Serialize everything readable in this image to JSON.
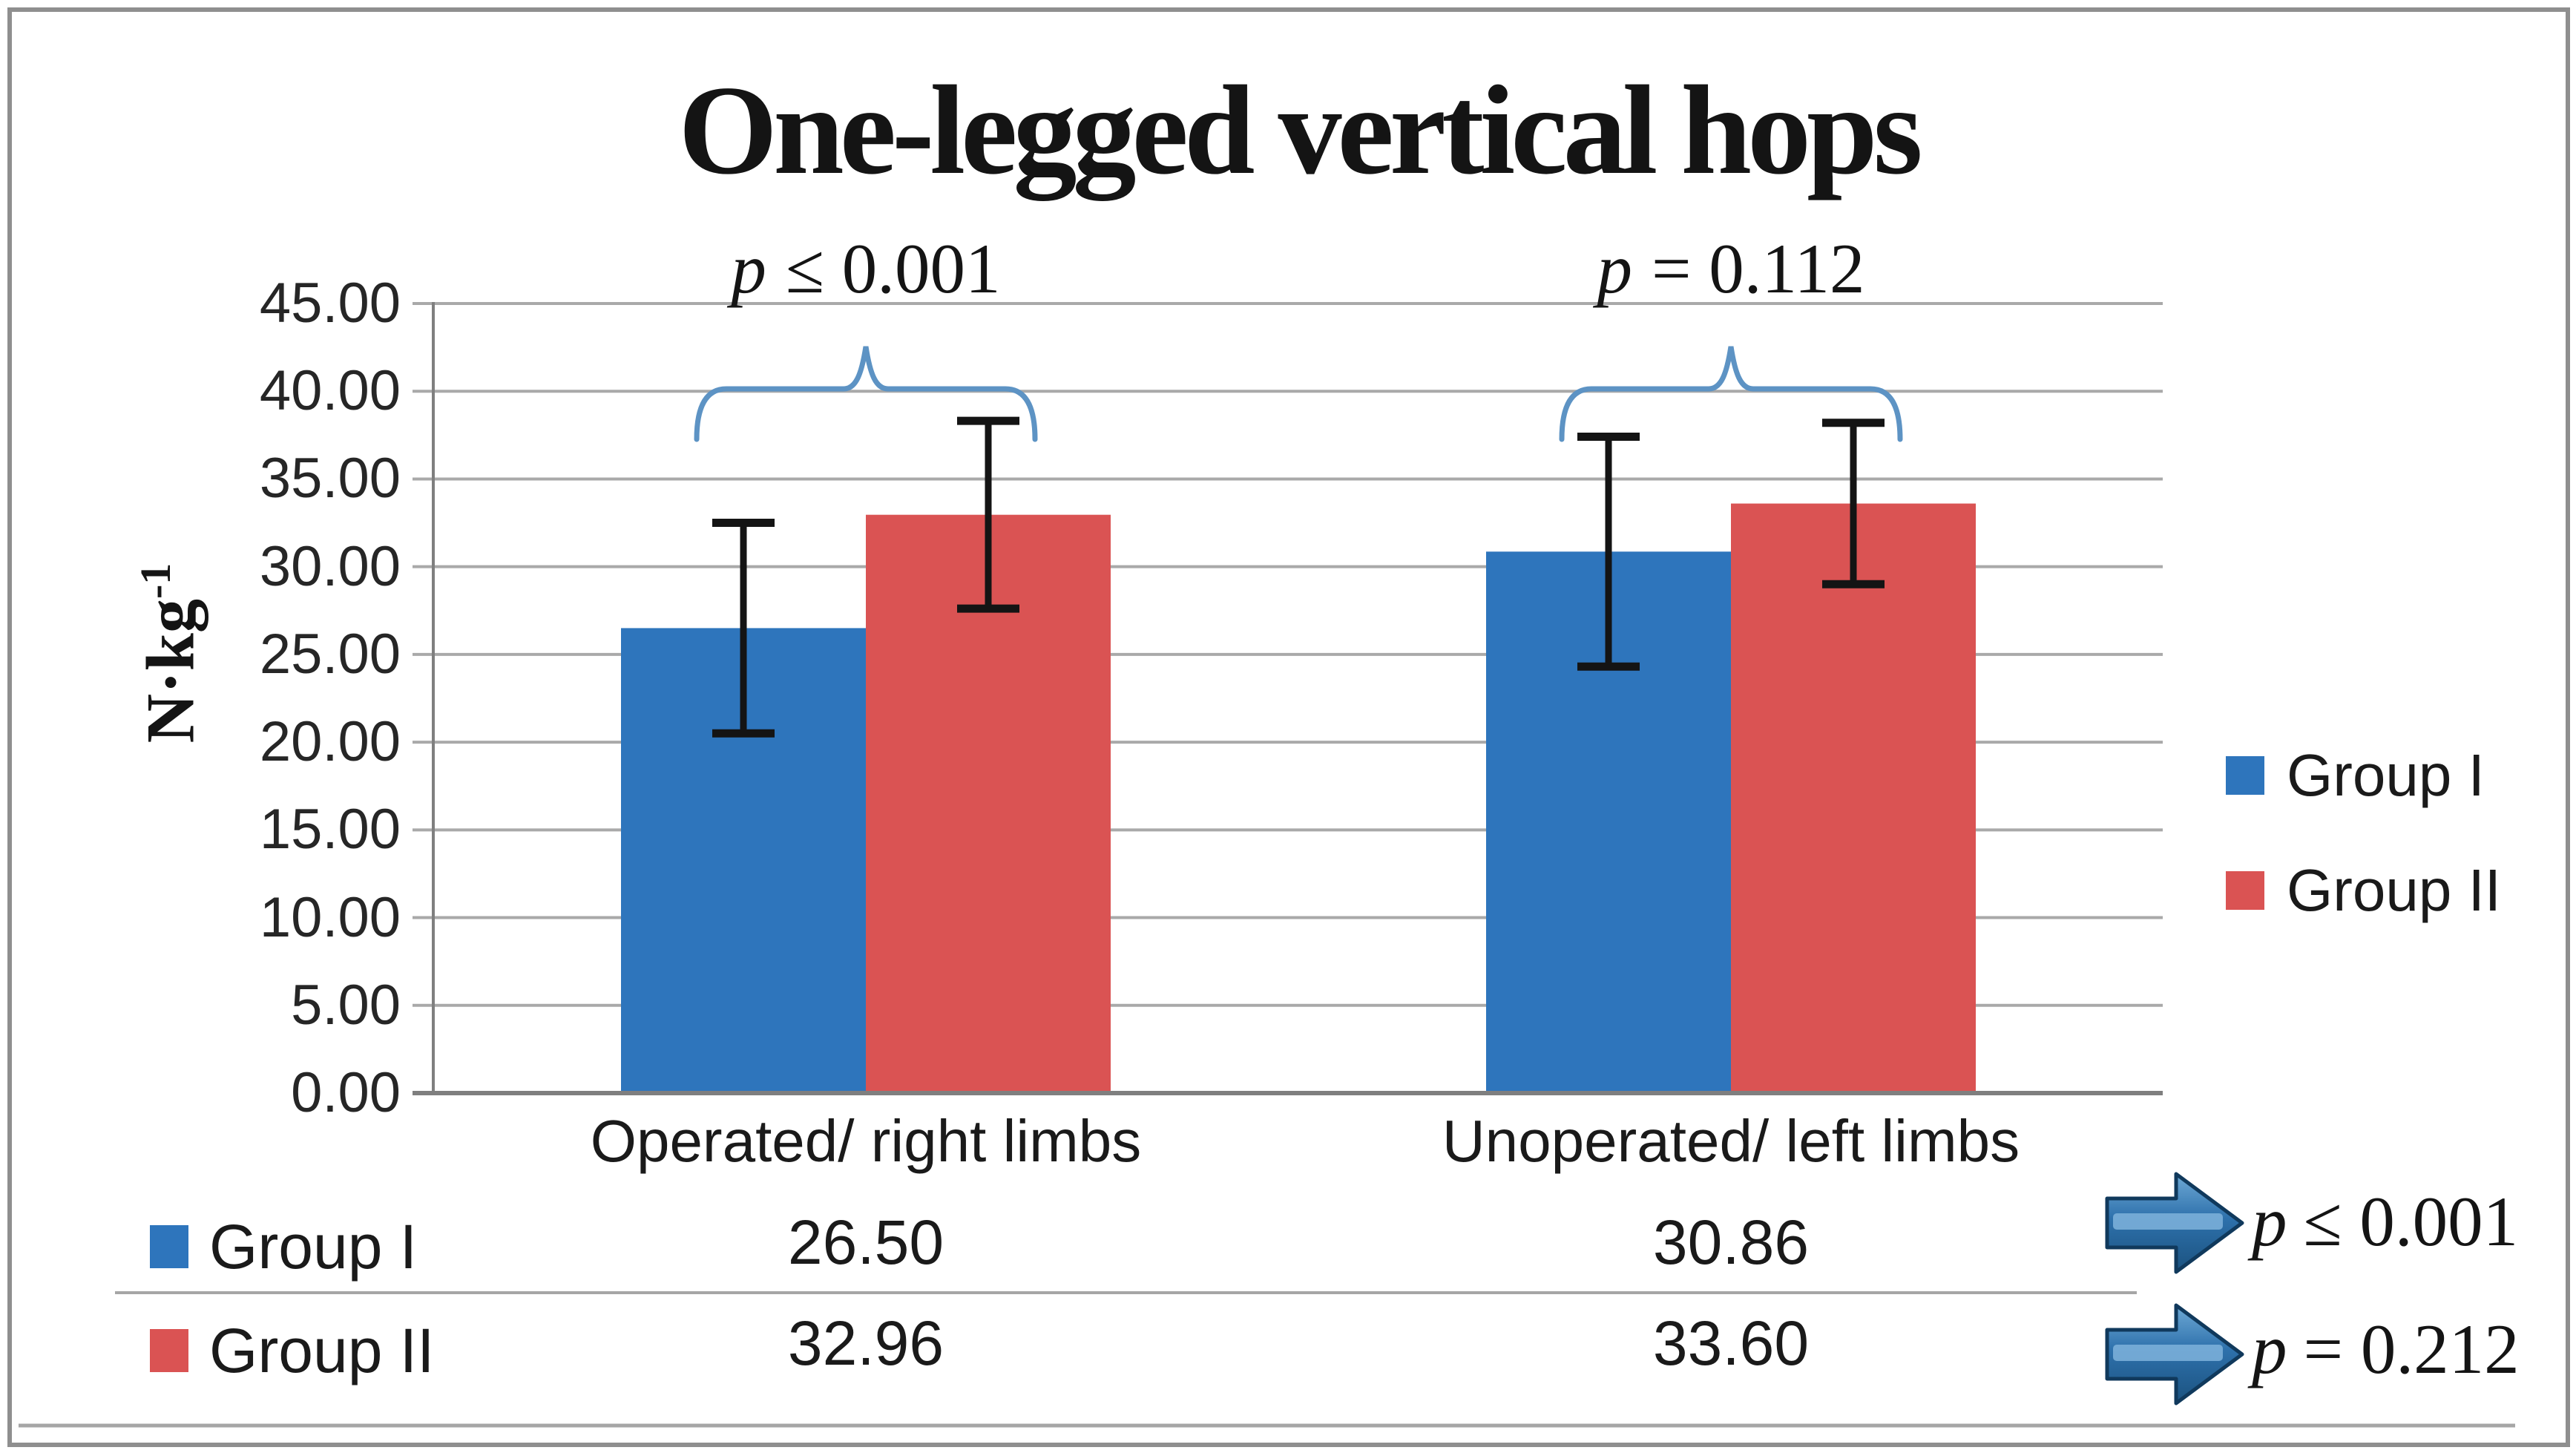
{
  "chart_data": {
    "type": "bar",
    "title": "One-legged vertical hops",
    "categories": [
      "Operated/ right limbs",
      "Unoperated/ left limbs"
    ],
    "series": [
      {
        "name": "Group I",
        "color": "#2E75BC",
        "values": [
          26.5,
          30.86
        ],
        "error_plus": [
          6.0,
          6.55
        ],
        "error_minus": [
          6.0,
          6.55
        ]
      },
      {
        "name": "Group II",
        "color": "#DA5353",
        "values": [
          32.96,
          33.6
        ],
        "error_plus": [
          5.35,
          4.6
        ],
        "error_minus": [
          5.35,
          4.6
        ]
      }
    ],
    "ylabel_base": "N·kg",
    "ylabel_exp": "-1",
    "ylim": [
      0,
      45
    ],
    "ytick_step": 5,
    "yticks": [
      "0.00",
      "5.00",
      "10.00",
      "15.00",
      "20.00",
      "25.00",
      "30.00",
      "35.00",
      "40.00",
      "45.00"
    ],
    "grid": true,
    "legend_position": "right",
    "bracket_annotations": [
      {
        "category_index": 0,
        "p": "p",
        "text": "≤ 0.001"
      },
      {
        "category_index": 1,
        "p": "p",
        "text": "= 0.112"
      }
    ]
  },
  "legend": {
    "items": [
      {
        "label": "Group I",
        "color": "#2E75BC"
      },
      {
        "label": "Group II",
        "color": "#DA5353"
      }
    ]
  },
  "table": {
    "rows": [
      {
        "label": "Group I",
        "key_color": "#2E75BC",
        "values": [
          "26.50",
          "30.86"
        ],
        "arrow_p": "p",
        "arrow_text": "≤ 0.001"
      },
      {
        "label": "Group II",
        "key_color": "#DA5353",
        "values": [
          "32.96",
          "33.60"
        ],
        "arrow_p": "p",
        "arrow_text": "= 0.212"
      }
    ]
  },
  "colors": {
    "bar_blue": "#2E75BC",
    "bar_red": "#DA5353",
    "brace": "#5D93C4",
    "grid": "#A9A9A9",
    "axis": "#7F7F7F",
    "error": "#141414",
    "table_line": "#A6A6A6",
    "arrow_dark": "#10395C",
    "arrow_mid": "#2E71AC",
    "arrow_deep": "#1B527F",
    "arrow_light": "#7FB3DC",
    "border": "#8F8F8F"
  }
}
